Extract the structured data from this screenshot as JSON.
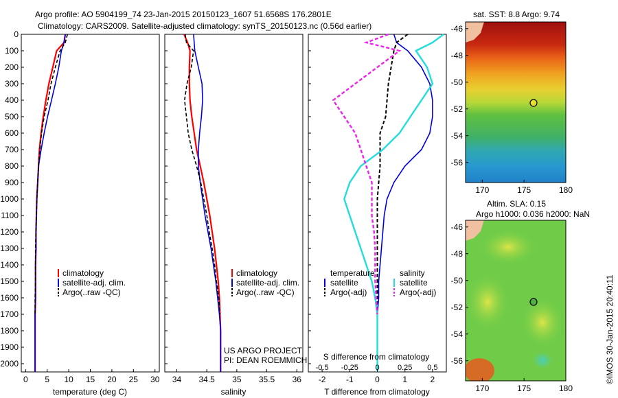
{
  "header": {
    "line1": "Argo profile: AO 5904199_74 23-Jan-2015 20150123_1607 51.6568S 176.2801E",
    "line2": "Climatology: CARS2009. Satellite-adjusted climatology: synTS_20150123.nc (0.56d earlier)"
  },
  "colors": {
    "climatology": "#ff0000",
    "satellite": "#0000dd",
    "argo": "#000000",
    "sal_satellite": "#22dddd",
    "sal_argo": "#ee22ee"
  },
  "depth_axis": {
    "ticks": [
      "0",
      "100",
      "200",
      "300",
      "400",
      "500",
      "600",
      "700",
      "800",
      "900",
      "1000",
      "1100",
      "1200",
      "1300",
      "1400",
      "1500",
      "1600",
      "1700",
      "1800",
      "1900",
      "2000"
    ]
  },
  "temp_panel": {
    "xlabel": "temperature (deg C)",
    "xticks": [
      "0",
      "5",
      "10",
      "15",
      "20",
      "25",
      "30"
    ],
    "legend": [
      "climatology",
      "satellite-adj. clim.",
      "Argo(..raw -QC)"
    ]
  },
  "sal_panel": {
    "xlabel": "salinity",
    "xticks": [
      "34",
      "34.5",
      "35",
      "35.5",
      "36"
    ],
    "legend": [
      "climatology",
      "satellite-adj. clim.",
      "Argo(..raw -QC)"
    ],
    "note1": "US ARGO PROJECT",
    "note2": "PI: DEAN ROEMMICH"
  },
  "diff_panel": {
    "xlabel": "T difference from climatology",
    "top_label": "S difference from climatology",
    "xticks_bottom": [
      "-2",
      "-1",
      "0",
      "1",
      "2"
    ],
    "xticks_top": [
      "-0.5",
      "-0.25",
      "0",
      "0.25",
      "0.5"
    ],
    "legend_temp_title": "temperature",
    "legend_sal_title": "salinity",
    "legend_temp": [
      "satellite",
      "Argo(-adj)"
    ],
    "legend_sal": [
      "satellite",
      "Argo(-adj)"
    ]
  },
  "sst_map": {
    "title": "sat. SST: 8.8 Argo: 9.74",
    "yticks": [
      "-46",
      "-48",
      "-50",
      "-52",
      "-54",
      "-56"
    ],
    "xticks": [
      "170",
      "175",
      "180"
    ]
  },
  "sla_map": {
    "title1": "Altim. SLA: 0.15",
    "title2": "Argo h1000: 0.036 h2000: NaN",
    "yticks": [
      "-46",
      "-48",
      "-50",
      "-52",
      "-54",
      "-56"
    ],
    "xticks": [
      "170",
      "175",
      "180"
    ]
  },
  "credit": "©IMOS 30-Jan-2015 20:40:11",
  "chart_data": [
    {
      "type": "line",
      "xlim": [
        -1,
        31
      ],
      "ylim": [
        2050,
        0
      ],
      "ylabel": "",
      "xlabel": "temperature (deg C)",
      "series": [
        {
          "name": "climatology",
          "x": [
            9.2,
            8.9,
            7.2,
            6.3,
            5.4,
            4.7,
            4.1,
            3.6,
            3.2,
            3.0,
            2.8,
            2.6,
            2.5,
            2.4,
            2.4,
            2.3,
            2.3,
            2.3,
            2.2,
            2.2,
            2.2
          ],
          "y": [
            0,
            50,
            100,
            200,
            300,
            400,
            500,
            600,
            700,
            800,
            900,
            1000,
            1100,
            1200,
            1300,
            1400,
            1500,
            1600,
            1700,
            1800,
            2050
          ]
        },
        {
          "name": "satellite-adj. clim.",
          "x": [
            9.2,
            8.9,
            8.3,
            7.7,
            6.9,
            6.0,
            5.1,
            4.3,
            3.6,
            3.0,
            2.8,
            2.6,
            2.5,
            2.4,
            2.4,
            2.3,
            2.3,
            2.3,
            2.2,
            2.2,
            2.2
          ],
          "y": [
            0,
            50,
            100,
            200,
            300,
            400,
            500,
            600,
            700,
            800,
            900,
            1000,
            1100,
            1200,
            1300,
            1400,
            1500,
            1600,
            1700,
            1800,
            2050
          ]
        },
        {
          "name": "Argo(..raw -QC)",
          "x": [
            9.7,
            9.2,
            8.0,
            6.9,
            5.9,
            5.2,
            4.3,
            3.7,
            3.3,
            3.0,
            2.8,
            2.6,
            2.5,
            2.4,
            2.3,
            2.3,
            2.3,
            2.2,
            2.2
          ],
          "y": [
            0,
            50,
            100,
            200,
            300,
            400,
            500,
            600,
            700,
            800,
            900,
            1000,
            1100,
            1200,
            1300,
            1400,
            1500,
            1600,
            1700
          ]
        }
      ]
    },
    {
      "type": "line",
      "xlim": [
        33.8,
        36.1
      ],
      "ylim": [
        2050,
        0
      ],
      "xlabel": "salinity",
      "series": [
        {
          "name": "climatology",
          "x": [
            34.12,
            34.18,
            34.22,
            34.21,
            34.21,
            34.22,
            34.25,
            34.29,
            34.33,
            34.39,
            34.45,
            34.5,
            34.55,
            34.59,
            34.63,
            34.66,
            34.69,
            34.71,
            34.72,
            34.73,
            34.73
          ],
          "y": [
            0,
            50,
            100,
            200,
            300,
            400,
            500,
            600,
            700,
            800,
            900,
            1000,
            1100,
            1200,
            1300,
            1400,
            1500,
            1600,
            1700,
            1800,
            2050
          ]
        },
        {
          "name": "satellite-adj. clim.",
          "x": [
            34.28,
            34.29,
            34.3,
            34.36,
            34.42,
            34.43,
            34.41,
            34.38,
            34.36,
            34.36,
            34.39,
            34.43,
            34.47,
            34.52,
            34.57,
            34.61,
            34.65,
            34.68,
            34.71,
            34.73,
            34.73
          ],
          "y": [
            0,
            50,
            100,
            200,
            300,
            400,
            500,
            600,
            700,
            800,
            900,
            1000,
            1100,
            1200,
            1300,
            1400,
            1500,
            1600,
            1700,
            1800,
            2050
          ]
        },
        {
          "name": "Argo(..raw -QC)",
          "x": [
            34.14,
            34.16,
            34.28,
            34.24,
            34.17,
            34.13,
            34.16,
            34.19,
            34.25,
            34.33,
            34.4,
            34.45,
            34.5,
            34.54,
            34.59,
            34.63,
            34.66,
            34.7,
            34.72
          ],
          "y": [
            0,
            50,
            100,
            200,
            300,
            400,
            500,
            600,
            700,
            800,
            900,
            1000,
            1100,
            1200,
            1300,
            1400,
            1500,
            1600,
            1700
          ]
        }
      ]
    },
    {
      "type": "line",
      "xlim": [
        -2.5,
        2.5
      ],
      "ylim": [
        2050,
        0
      ],
      "xlabel": "T difference from climatology",
      "series": [
        {
          "name": "temperature satellite",
          "x": [
            0.6,
            0.7,
            1.1,
            1.6,
            1.9,
            2.0,
            2.0,
            1.9,
            1.6,
            1.0,
            0.6,
            0.35,
            0.25,
            0.2,
            0.15,
            0.1,
            0.05,
            0.05,
            0.0,
            0.0,
            0.0
          ],
          "y": [
            0,
            50,
            100,
            200,
            300,
            400,
            500,
            600,
            700,
            800,
            900,
            1000,
            1100,
            1200,
            1300,
            1400,
            1500,
            1600,
            1700,
            1800,
            2050
          ]
        },
        {
          "name": "temperature Argo(-adj)",
          "x": [
            1.1,
            0.7,
            0.6,
            0.5,
            0.4,
            0.35,
            0.3,
            0.1,
            0.1,
            0.1,
            0.05,
            0.0,
            0.0,
            0.0,
            0.0,
            0.0,
            0.0,
            0.0,
            0.0
          ],
          "y": [
            0,
            50,
            100,
            200,
            300,
            400,
            500,
            600,
            700,
            800,
            900,
            1000,
            1100,
            1200,
            1300,
            1400,
            1500,
            1600,
            1700
          ]
        },
        {
          "name": "salinity satellite",
          "x": [
            0.6,
            0.5,
            0.35,
            0.45,
            0.5,
            0.4,
            0.3,
            0.2,
            0.05,
            -0.15,
            -0.25,
            -0.3,
            -0.25,
            -0.2,
            -0.15,
            -0.1,
            -0.05,
            -0.02,
            0.0,
            0.0,
            0.0
          ],
          "y": [
            0,
            50,
            100,
            200,
            300,
            400,
            500,
            600,
            700,
            800,
            900,
            1000,
            1100,
            1200,
            1300,
            1400,
            1500,
            1600,
            1700,
            1800,
            2050
          ]
        },
        {
          "name": "salinity Argo(-adj)",
          "x": [
            0.1,
            -0.1,
            0.2,
            0.0,
            -0.2,
            -0.4,
            -0.3,
            -0.2,
            -0.15,
            -0.1,
            -0.05,
            -0.05,
            -0.05,
            -0.03,
            -0.02,
            -0.02,
            -0.02,
            -0.01,
            0.0
          ],
          "y": [
            0,
            50,
            100,
            200,
            300,
            400,
            500,
            600,
            700,
            800,
            900,
            1000,
            1100,
            1200,
            1300,
            1400,
            1500,
            1600,
            1700
          ]
        }
      ]
    },
    {
      "type": "heatmap",
      "title": "sat. SST: 8.8 Argo: 9.74",
      "xlim": [
        168,
        180
      ],
      "ylim": [
        -57.5,
        -45.5
      ],
      "argo_position": [
        176.28,
        -51.66
      ]
    },
    {
      "type": "heatmap",
      "title": "Altim. SLA: 0.15",
      "xlim": [
        168,
        180
      ],
      "ylim": [
        -57.5,
        -45.5
      ],
      "argo_position": [
        176.28,
        -51.66
      ]
    }
  ]
}
